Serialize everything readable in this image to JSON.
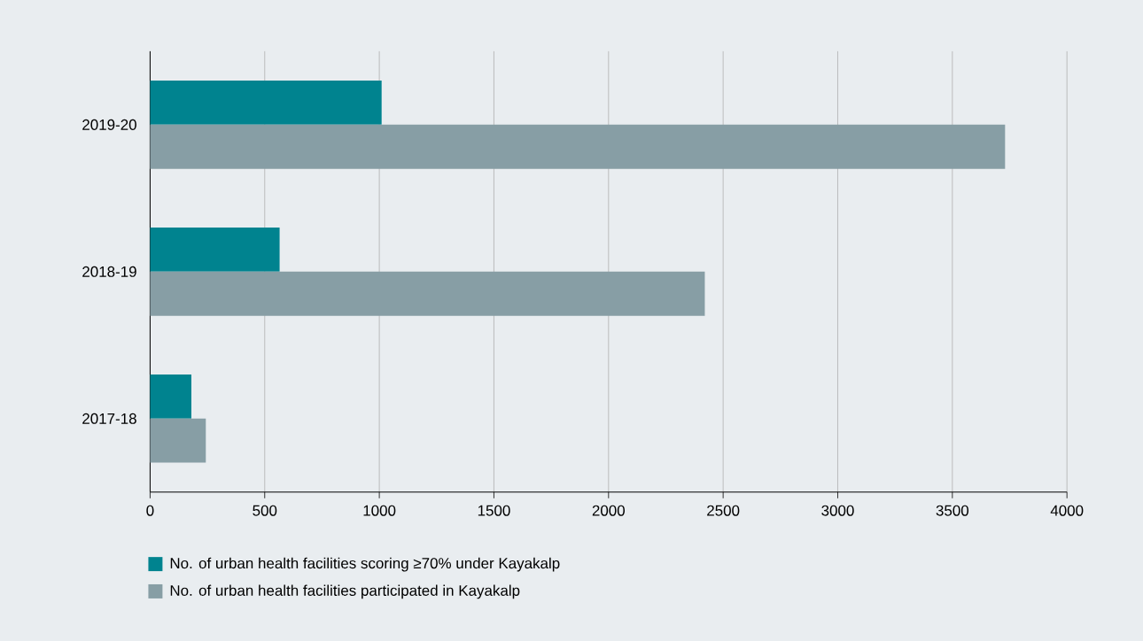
{
  "chart_data": {
    "type": "bar",
    "orientation": "horizontal",
    "categories": [
      "2019-20",
      "2018-19",
      "2017-18"
    ],
    "series": [
      {
        "name": "No. of urban health facilities scoring ≥70% under Kayakalp",
        "color": "#00838f",
        "values": [
          1010,
          565,
          180
        ]
      },
      {
        "name": "No. of urban health facilities participated in Kayakalp",
        "color": "#879ea5",
        "values": [
          3730,
          2420,
          243
        ]
      }
    ],
    "xlim": [
      0,
      4000
    ],
    "xticks": [
      0,
      500,
      1000,
      1500,
      2000,
      2500,
      3000,
      3500,
      4000
    ],
    "grid": "x",
    "legend": "bottom"
  }
}
